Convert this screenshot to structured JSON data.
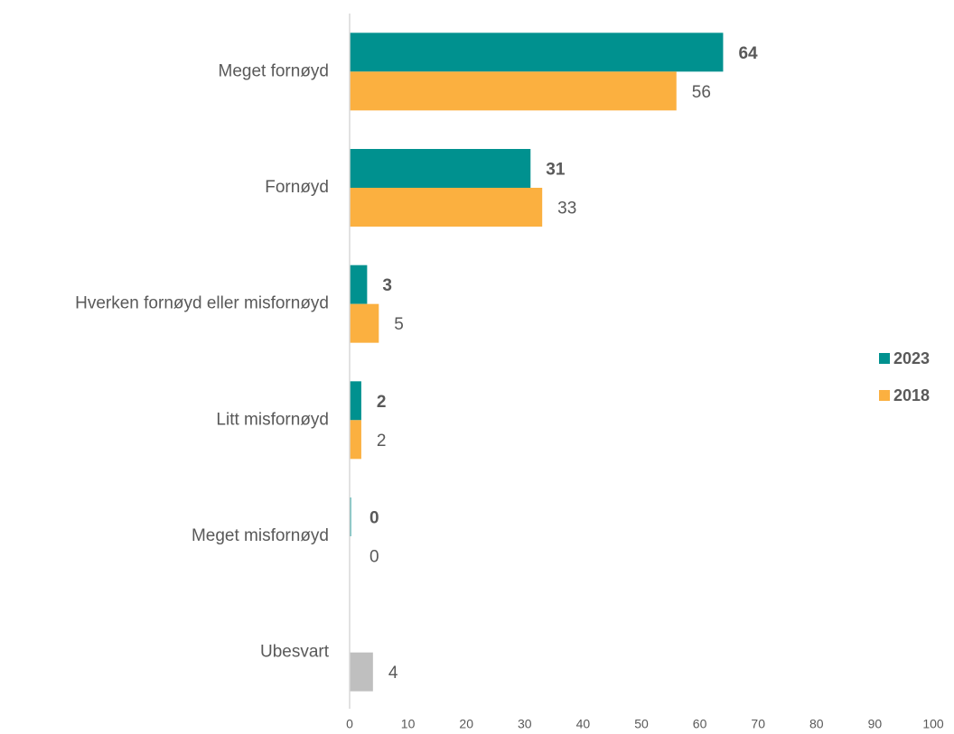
{
  "chart_data": {
    "type": "hbar",
    "categories": [
      "Meget fornøyd",
      "Fornøyd",
      "Hverken fornøyd eller misfornøyd",
      "Litt misfornøyd",
      "Meget misfornøyd",
      "Ubesvart"
    ],
    "series": [
      {
        "name": "2023",
        "color": "#00918f",
        "values": [
          64,
          31,
          3,
          2,
          0,
          null
        ]
      },
      {
        "name": "2018",
        "color": "#fbb040",
        "values": [
          56,
          33,
          5,
          2,
          0,
          4
        ],
        "colors": [
          "#fbb040",
          "#fbb040",
          "#fbb040",
          "#fbb040",
          "#fbb040",
          "#bfbfbf"
        ]
      }
    ],
    "xlim": [
      0,
      100
    ],
    "xticks": [
      0,
      10,
      20,
      30,
      40,
      50,
      60,
      70,
      80,
      90,
      100
    ],
    "legend": "right",
    "grid": false
  }
}
